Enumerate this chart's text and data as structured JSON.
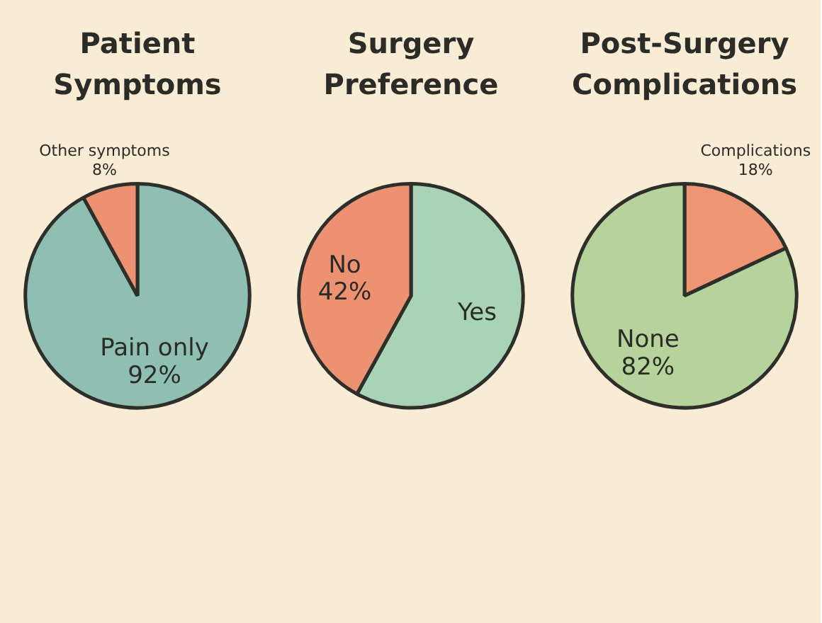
{
  "chart_data": [
    {
      "type": "pie",
      "title": "Patient Symptoms",
      "categories": [
        "Pain only",
        "Other symptoms"
      ],
      "values": [
        92,
        8
      ],
      "colors": [
        "#8fbfb2",
        "#ec9272"
      ],
      "value_labels": [
        "92%",
        "8%"
      ]
    },
    {
      "type": "pie",
      "title": "Surgery Preference",
      "categories": [
        "Yes",
        "No"
      ],
      "values": [
        58,
        42
      ],
      "colors": [
        "#a9d3b6",
        "#ec9272"
      ],
      "value_labels": [
        null,
        "42%"
      ]
    },
    {
      "type": "pie",
      "title": "Post-Surgery Complications",
      "categories": [
        "Complications",
        "None"
      ],
      "values": [
        18,
        82
      ],
      "colors": [
        "#ee9674",
        "#b5d39a"
      ],
      "value_labels": [
        "18%",
        "82%"
      ]
    }
  ]
}
